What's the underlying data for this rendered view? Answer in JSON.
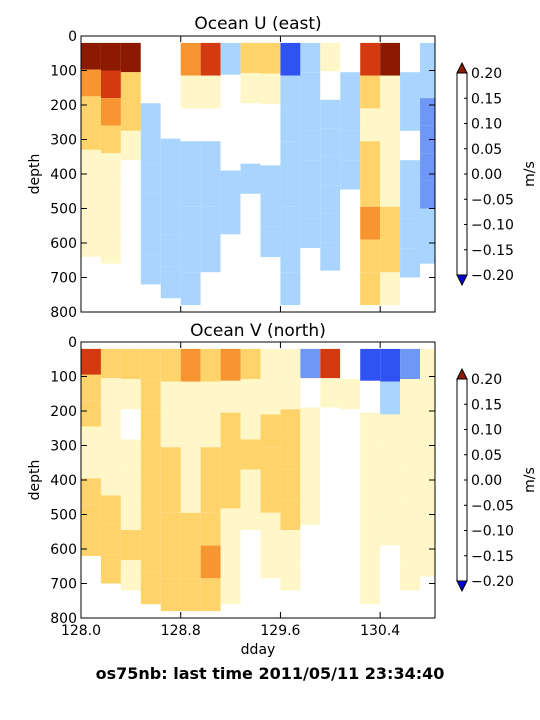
{
  "footer": "os75nb: last time 2011/05/11 23:34:40",
  "colorbar": {
    "label": "m/s",
    "levels": [
      -0.2,
      -0.15,
      -0.1,
      -0.05,
      0.0,
      0.05,
      0.1,
      0.15,
      0.2
    ],
    "tick_labels": [
      "−0.20",
      "−0.15",
      "−0.10",
      "−0.05",
      "0.00",
      "0.05",
      "0.10",
      "0.15",
      "0.20"
    ],
    "colors": [
      "#0000dc",
      "#2f52f2",
      "#6f97f8",
      "#a9d4fe",
      "#ffffff",
      "#fff7c8",
      "#fed46a",
      "#f79530",
      "#d43a10",
      "#8c1a00"
    ]
  },
  "chart_data": [
    {
      "type": "heatmap",
      "title": "Ocean U (east)",
      "xlabel": "",
      "ylabel": "depth",
      "xlim": [
        128.0,
        130.84
      ],
      "ylim": [
        800,
        0
      ],
      "xticks": [
        128.0,
        128.8,
        129.6,
        130.4
      ],
      "xticklabels": [
        "",
        "",
        "",
        ""
      ],
      "yticks": [
        0,
        100,
        200,
        300,
        400,
        500,
        600,
        700,
        800
      ],
      "yticklabels": [
        "0",
        "100",
        "200",
        "300",
        "400",
        "500",
        "600",
        "700",
        "800"
      ],
      "colorbar_label": "m/s",
      "field": {
        "bins": [
          {
            "x0": 128.0,
            "x1": 128.16,
            "bottom": 640,
            "v": [
              0.2,
              0.14,
              0.09,
              0.06,
              0.03,
              0.01,
              0.0,
              0.0
            ]
          },
          {
            "x0": 128.16,
            "x1": 128.32,
            "bottom": 660,
            "v": [
              0.2,
              0.16,
              0.11,
              0.07,
              0.04,
              0.02,
              0.0,
              0.0
            ]
          },
          {
            "x0": 128.32,
            "x1": 128.48,
            "bottom": 700,
            "v": [
              0.2,
              0.09,
              0.05,
              0.0,
              -0.02,
              -0.03,
              -0.02,
              -0.02
            ]
          },
          {
            "x0": 128.48,
            "x1": 128.64,
            "bottom": 720,
            "v": [
              -0.02,
              -0.04,
              -0.06,
              -0.07,
              -0.06,
              -0.07,
              -0.06,
              -0.06
            ]
          },
          {
            "x0": 128.64,
            "x1": 128.8,
            "bottom": 760,
            "v": [
              -0.03,
              -0.05,
              -0.05,
              -0.06,
              -0.08,
              -0.07,
              -0.06,
              -0.06
            ]
          },
          {
            "x0": 128.8,
            "x1": 128.96,
            "bottom": 780,
            "v": [
              0.12,
              0.0,
              -0.05,
              -0.07,
              -0.09,
              -0.08,
              -0.07,
              -0.06
            ]
          },
          {
            "x0": 128.96,
            "x1": 129.12,
            "bottom": 780,
            "v": [
              0.16,
              0.04,
              -0.04,
              -0.06,
              -0.07,
              -0.07,
              -0.06,
              -0.05
            ]
          },
          {
            "x0": 129.12,
            "x1": 129.28,
            "bottom": 760,
            "v": [
              -0.06,
              -0.05,
              -0.04,
              -0.05,
              -0.06,
              -0.06,
              -0.05,
              -0.05
            ]
          },
          {
            "x0": 129.28,
            "x1": 129.44,
            "bottom": 720,
            "v": [
              0.09,
              0.0,
              -0.04,
              -0.05,
              -0.06,
              -0.05,
              -0.04,
              -0.03
            ]
          },
          {
            "x0": 129.44,
            "x1": 129.6,
            "bottom": 730,
            "v": [
              0.05,
              0.0,
              -0.03,
              -0.05,
              -0.06,
              -0.07,
              -0.06,
              -0.05
            ]
          },
          {
            "x0": 129.6,
            "x1": 129.76,
            "bottom": 780,
            "v": [
              -0.16,
              -0.1,
              -0.07,
              -0.07,
              -0.08,
              -0.08,
              -0.07,
              -0.06
            ]
          },
          {
            "x0": 129.76,
            "x1": 129.92,
            "bottom": 700,
            "v": [
              -0.06,
              -0.08,
              -0.08,
              -0.09,
              -0.1,
              -0.08,
              -0.06,
              -0.05
            ]
          },
          {
            "x0": 129.92,
            "x1": 130.08,
            "bottom": 680,
            "v": [
              0.0,
              -0.05,
              -0.06,
              -0.07,
              -0.08,
              -0.09,
              -0.07,
              -0.06
            ]
          },
          {
            "x0": 130.08,
            "x1": 130.24,
            "bottom": 700,
            "v": [
              -0.05,
              -0.06,
              -0.06,
              -0.07,
              -0.06,
              -0.05,
              -0.04,
              -0.03
            ]
          },
          {
            "x0": 130.24,
            "x1": 130.4,
            "bottom": 780,
            "v": [
              0.19,
              0.06,
              0.02,
              0.05,
              0.09,
              0.12,
              0.09,
              0.06
            ]
          },
          {
            "x0": 130.4,
            "x1": 130.56,
            "bottom": 780,
            "v": [
              0.2,
              0.04,
              0.0,
              0.02,
              0.04,
              0.06,
              0.05,
              0.04
            ]
          },
          {
            "x0": 130.56,
            "x1": 130.72,
            "bottom": 700,
            "v": [
              -0.04,
              -0.07,
              -0.06,
              -0.05,
              -0.06,
              -0.08,
              -0.09,
              -0.08
            ]
          },
          {
            "x0": 130.72,
            "x1": 130.84,
            "bottom": 660,
            "v": [
              -0.06,
              -0.09,
              -0.11,
              -0.12,
              -0.14,
              -0.13,
              -0.1,
              -0.09
            ]
          }
        ]
      }
    },
    {
      "type": "heatmap",
      "title": "Ocean V (north)",
      "xlabel": "dday",
      "ylabel": "depth",
      "xlim": [
        128.0,
        130.84
      ],
      "ylim": [
        800,
        0
      ],
      "xticks": [
        128.0,
        128.8,
        129.6,
        130.4
      ],
      "xticklabels": [
        "128.0",
        "128.8",
        "129.6",
        "130.4"
      ],
      "yticks": [
        0,
        100,
        200,
        300,
        400,
        500,
        600,
        700,
        800
      ],
      "yticklabels": [
        "0",
        "100",
        "200",
        "300",
        "400",
        "500",
        "600",
        "700",
        "800"
      ],
      "colorbar_label": "m/s",
      "field": {
        "bins": [
          {
            "x0": 128.0,
            "x1": 128.16,
            "bottom": 620,
            "v": [
              0.16,
              0.06,
              0.05,
              0.04,
              0.04,
              0.05,
              0.06,
              0.05
            ]
          },
          {
            "x0": 128.16,
            "x1": 128.32,
            "bottom": 700,
            "v": [
              0.07,
              0.04,
              0.02,
              0.01,
              0.03,
              0.05,
              0.06,
              0.05
            ]
          },
          {
            "x0": 128.32,
            "x1": 128.48,
            "bottom": 720,
            "v": [
              0.05,
              0.0,
              -0.01,
              0.0,
              0.03,
              0.04,
              0.05,
              0.04
            ]
          },
          {
            "x0": 128.48,
            "x1": 128.64,
            "bottom": 760,
            "v": [
              0.09,
              0.05,
              0.06,
              0.07,
              0.06,
              0.07,
              0.08,
              0.07
            ]
          },
          {
            "x0": 128.64,
            "x1": 128.8,
            "bottom": 780,
            "v": [
              0.07,
              0.03,
              0.02,
              0.05,
              0.07,
              0.08,
              0.07,
              0.06
            ]
          },
          {
            "x0": 128.8,
            "x1": 128.96,
            "bottom": 780,
            "v": [
              0.14,
              0.04,
              0.02,
              0.03,
              0.04,
              0.06,
              0.07,
              0.06
            ]
          },
          {
            "x0": 128.96,
            "x1": 129.12,
            "bottom": 780,
            "v": [
              0.08,
              0.03,
              0.02,
              0.07,
              0.08,
              0.09,
              0.1,
              0.09
            ]
          },
          {
            "x0": 129.12,
            "x1": 129.28,
            "bottom": 760,
            "v": [
              0.12,
              0.04,
              0.05,
              0.07,
              0.05,
              0.04,
              0.03,
              0.02
            ]
          },
          {
            "x0": 129.28,
            "x1": 129.44,
            "bottom": 720,
            "v": [
              0.06,
              0.02,
              0.03,
              0.06,
              0.03,
              0.0,
              -0.01,
              -0.01
            ]
          },
          {
            "x0": 129.44,
            "x1": 129.6,
            "bottom": 780,
            "v": [
              0.02,
              0.02,
              0.06,
              0.08,
              0.06,
              0.03,
              0.0,
              -0.02
            ]
          },
          {
            "x0": 129.6,
            "x1": 129.76,
            "bottom": 720,
            "v": [
              0.03,
              0.04,
              0.07,
              0.08,
              0.07,
              0.05,
              0.02,
              0.0
            ]
          },
          {
            "x0": 129.76,
            "x1": 129.92,
            "bottom": 700,
            "v": [
              -0.12,
              -0.02,
              0.0,
              0.02,
              0.01,
              0.0,
              -0.01,
              -0.02
            ]
          },
          {
            "x0": 129.92,
            "x1": 130.08,
            "bottom": 700,
            "v": [
              0.18,
              0.02,
              -0.03,
              -0.04,
              -0.03,
              -0.02,
              -0.02,
              -0.03
            ]
          },
          {
            "x0": 130.08,
            "x1": 130.24,
            "bottom": 720,
            "v": [
              -0.05,
              0.0,
              -0.02,
              -0.03,
              -0.02,
              -0.02,
              -0.03,
              -0.04
            ]
          },
          {
            "x0": 130.24,
            "x1": 130.4,
            "bottom": 760,
            "v": [
              -0.2,
              -0.04,
              0.0,
              0.0,
              0.02,
              0.03,
              0.02,
              0.0
            ]
          },
          {
            "x0": 130.4,
            "x1": 130.56,
            "bottom": 780,
            "v": [
              -0.2,
              -0.06,
              0.0,
              0.04,
              0.02,
              0.0,
              -0.01,
              -0.02
            ]
          },
          {
            "x0": 130.56,
            "x1": 130.72,
            "bottom": 720,
            "v": [
              -0.14,
              0.02,
              0.04,
              0.03,
              0.02,
              0.02,
              0.03,
              0.02
            ]
          },
          {
            "x0": 130.72,
            "x1": 130.84,
            "bottom": 680,
            "v": [
              0.04,
              0.03,
              0.02,
              0.02,
              0.01,
              0.02,
              0.03,
              0.02
            ]
          }
        ]
      }
    }
  ]
}
